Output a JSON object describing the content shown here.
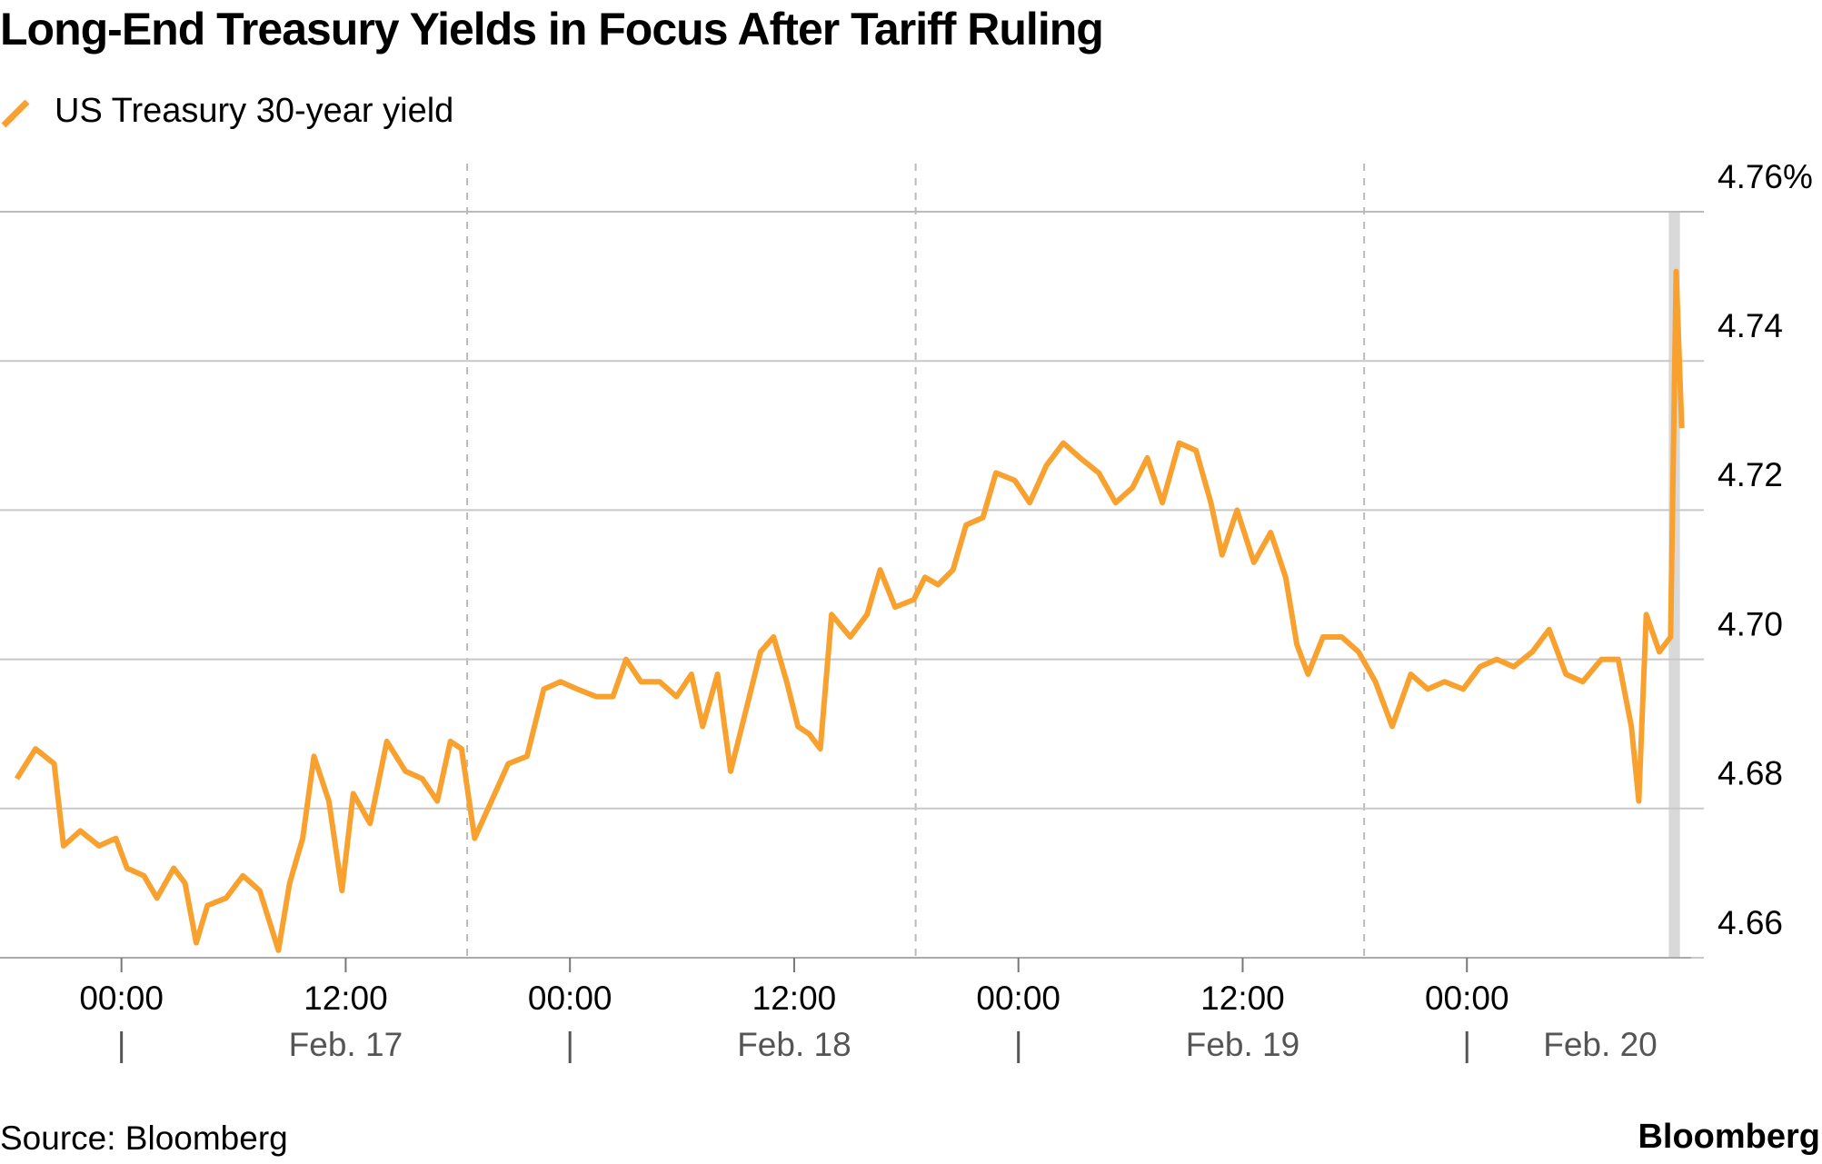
{
  "chart_data": {
    "type": "line",
    "title": "Long-End Treasury Yields in Focus After Tariff Ruling",
    "source": "Source: Bloomberg",
    "brand": "Bloomberg",
    "grid": true,
    "series": [
      {
        "name": "US Treasury 30-year yield",
        "color": "#f9a12e",
        "x": [
          -5.6,
          -4.6,
          -3.6,
          -3.1,
          -2.2,
          -1.2,
          -0.3,
          0.3,
          1.2,
          1.9,
          2.8,
          3.4,
          4.0,
          4.6,
          5.6,
          6.5,
          7.4,
          8.4,
          9.0,
          9.7,
          10.3,
          11.1,
          11.8,
          12.4,
          13.3,
          14.2,
          15.2,
          16.1,
          16.9,
          17.6,
          18.2,
          18.9,
          19.8,
          20.7,
          21.7,
          22.6,
          23.5,
          24.4,
          25.4,
          26.3,
          27.0,
          27.8,
          28.8,
          29.7,
          30.5,
          31.1,
          31.9,
          32.6,
          33.4,
          34.2,
          34.9,
          35.6,
          36.2,
          36.8,
          37.4,
          38.0,
          39.0,
          39.9,
          40.6,
          41.4,
          42.4,
          43.0,
          43.7,
          44.5,
          45.2,
          46.1,
          46.8,
          47.8,
          48.6,
          49.5,
          50.4,
          51.3,
          52.3,
          53.2,
          54.1,
          54.9,
          55.7,
          56.6,
          57.5,
          58.3,
          58.9,
          59.7,
          60.6,
          61.5,
          62.3,
          62.9,
          63.5,
          64.3,
          65.3,
          66.2,
          67.1,
          68.0,
          69.0,
          69.9,
          70.8,
          71.8,
          72.7,
          73.6,
          74.5,
          75.5,
          76.4,
          77.3,
          78.2,
          79.2,
          80.1,
          80.8,
          81.2,
          81.6,
          82.3,
          82.9,
          83.2,
          83.5
        ],
        "values": [
          4.684,
          4.688,
          4.686,
          4.675,
          4.677,
          4.675,
          4.676,
          4.672,
          4.671,
          4.668,
          4.672,
          4.67,
          4.662,
          4.667,
          4.668,
          4.671,
          4.669,
          4.661,
          4.67,
          4.676,
          4.687,
          4.681,
          4.669,
          4.682,
          4.678,
          4.689,
          4.685,
          4.684,
          4.681,
          4.689,
          4.688,
          4.676,
          4.681,
          4.686,
          4.687,
          4.696,
          4.697,
          4.696,
          4.695,
          4.695,
          4.7,
          4.697,
          4.697,
          4.695,
          4.698,
          4.691,
          4.698,
          4.685,
          4.693,
          4.701,
          4.703,
          4.697,
          4.691,
          4.69,
          4.688,
          4.706,
          4.703,
          4.706,
          4.712,
          4.707,
          4.708,
          4.711,
          4.71,
          4.712,
          4.718,
          4.719,
          4.725,
          4.724,
          4.721,
          4.726,
          4.729,
          4.727,
          4.725,
          4.721,
          4.723,
          4.727,
          4.721,
          4.729,
          4.728,
          4.721,
          4.714,
          4.72,
          4.713,
          4.717,
          4.711,
          4.702,
          4.698,
          4.703,
          4.703,
          4.701,
          4.697,
          4.691,
          4.698,
          4.696,
          4.697,
          4.696,
          4.699,
          4.7,
          4.699,
          4.701,
          4.704,
          4.698,
          4.697,
          4.7,
          4.7,
          4.691,
          4.681,
          4.706,
          4.701,
          4.703,
          4.752,
          4.731
        ]
      }
    ],
    "xlim": [
      -6.5,
      84
    ],
    "xticks": [
      {
        "value": 0,
        "label": "00:00"
      },
      {
        "value": 12,
        "label": "12:00"
      },
      {
        "value": 24,
        "label": "00:00"
      },
      {
        "value": 36,
        "label": "12:00"
      },
      {
        "value": 48,
        "label": "00:00"
      },
      {
        "value": 60,
        "label": "12:00"
      },
      {
        "value": 72,
        "label": "00:00"
      }
    ],
    "day_labels": [
      {
        "value": 0,
        "label": "Feb. 17"
      },
      {
        "value": 24,
        "label": "Feb. 18"
      },
      {
        "value": 48,
        "label": "Feb. 19"
      },
      {
        "value": 72,
        "label": "Feb. 20"
      }
    ],
    "session_breaks": [
      18.5,
      42.5,
      66.5
    ],
    "highlight": [
      82.8,
      83.4
    ],
    "ylim": [
      4.66,
      4.76
    ],
    "yticks": [
      4.66,
      4.68,
      {
        "value": 4.7,
        "label": "4.70"
      },
      4.72,
      4.74,
      {
        "value": 4.76,
        "label": "4.76%"
      }
    ]
  }
}
